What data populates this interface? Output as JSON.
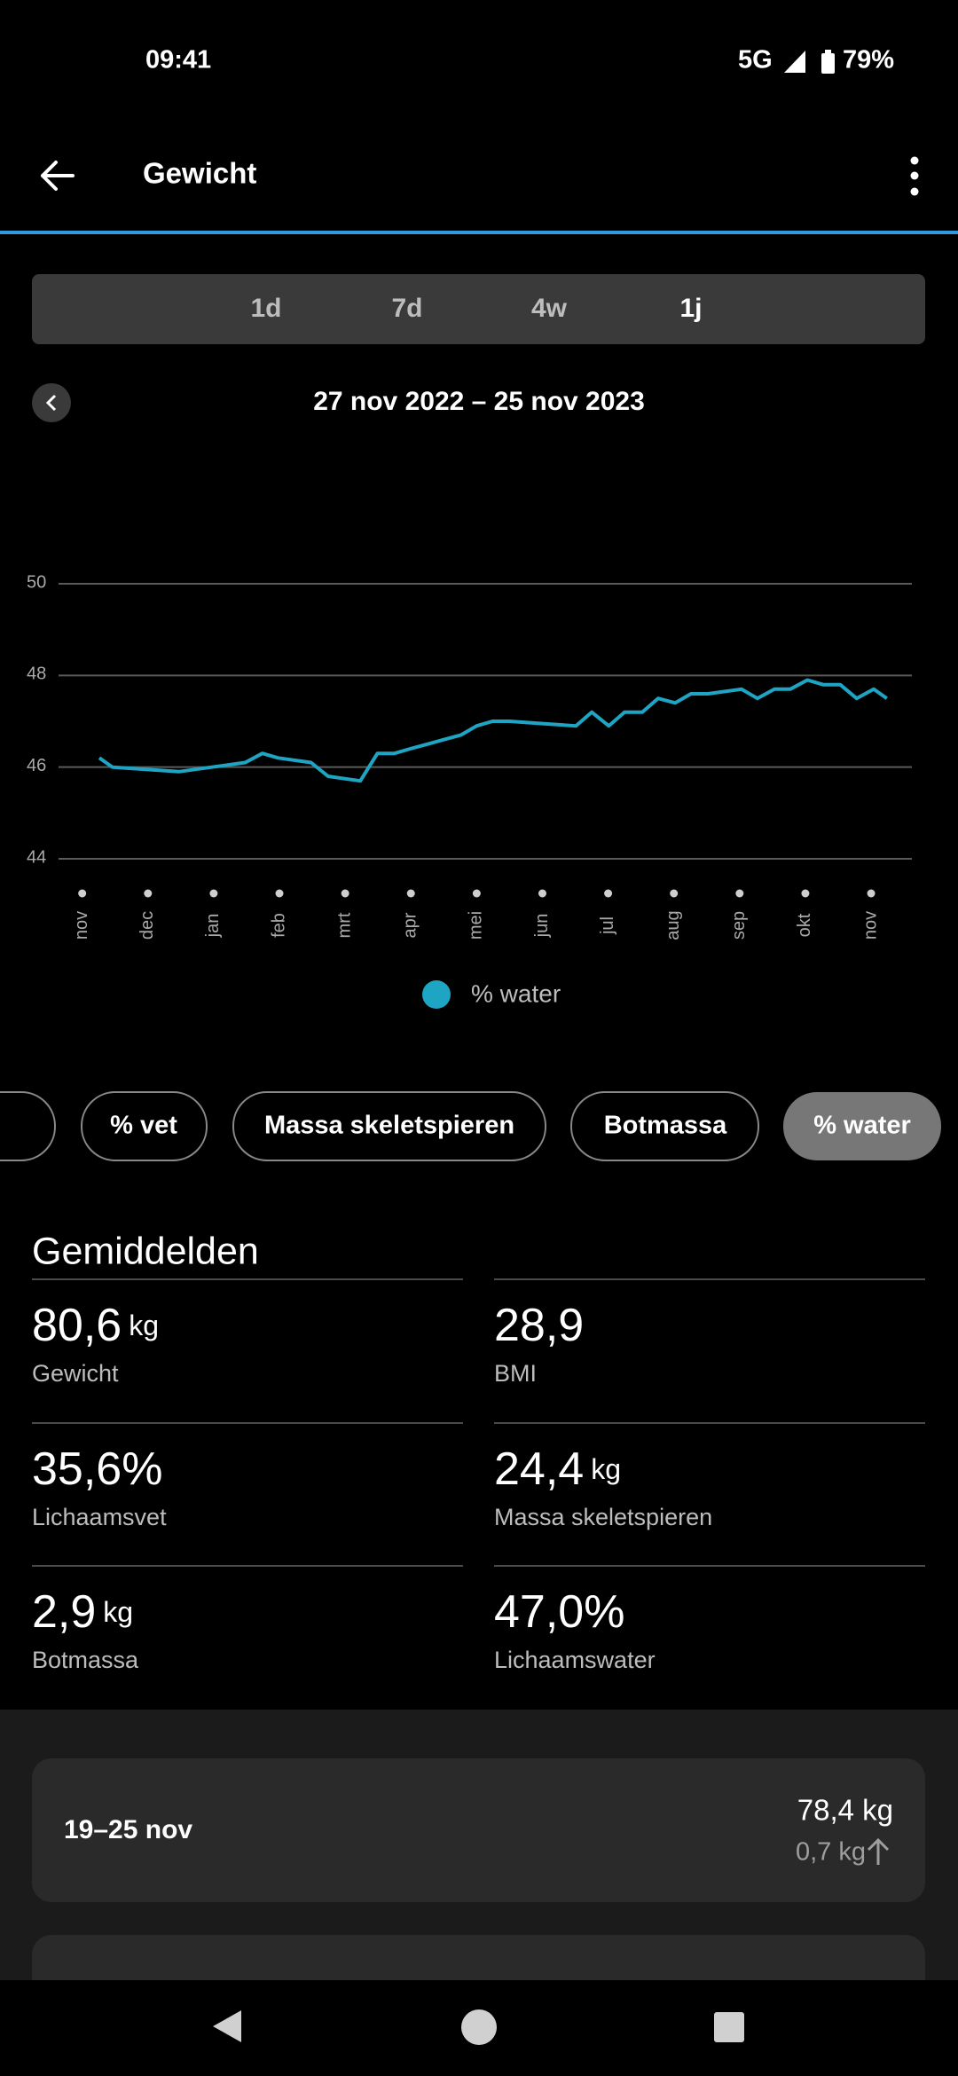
{
  "status_bar": {
    "time": "09:41",
    "network": "5G",
    "battery": "79%"
  },
  "header": {
    "title": "Gewicht"
  },
  "tabs": [
    "1d",
    "7d",
    "4w",
    "1j"
  ],
  "date_range": "27 nov 2022 – 25 nov 2023",
  "chart_data": {
    "type": "line",
    "xlim": [
      -0.36,
      12.62
    ],
    "xticks": [
      {
        "value": 0,
        "label": "nov"
      },
      {
        "value": 1,
        "label": "dec"
      },
      {
        "value": 2,
        "label": "jan"
      },
      {
        "value": 3,
        "label": "feb"
      },
      {
        "value": 4,
        "label": "mrt"
      },
      {
        "value": 5,
        "label": "apr"
      },
      {
        "value": 6,
        "label": "mei"
      },
      {
        "value": 7,
        "label": "jun"
      },
      {
        "value": 8,
        "label": "jul"
      },
      {
        "value": 9,
        "label": "aug"
      },
      {
        "value": 10,
        "label": "sep"
      },
      {
        "value": 11,
        "label": "okt"
      },
      {
        "value": 12,
        "label": "nov"
      }
    ],
    "ylim": [
      44,
      50
    ],
    "yticks": [
      44,
      46,
      48,
      50
    ],
    "grid": true,
    "x": [
      0.26,
      0.46,
      0.97,
      1.47,
      1.97,
      2.48,
      2.74,
      2.98,
      3.48,
      3.74,
      4.23,
      4.49,
      4.75,
      4.99,
      5.25,
      5.5,
      5.76,
      6.0,
      6.24,
      6.5,
      7.0,
      7.51,
      7.75,
      8.01,
      8.25,
      8.52,
      8.76,
      9.02,
      9.26,
      9.52,
      10.03,
      10.27,
      10.53,
      10.77,
      11.03,
      11.27,
      11.53,
      11.78,
      12.04,
      12.24
    ],
    "series": [
      {
        "name": "% water",
        "color": "#1fa5c4",
        "values": [
          46.2,
          46.0,
          45.95,
          45.9,
          46.0,
          46.1,
          46.3,
          46.2,
          46.1,
          45.8,
          45.7,
          46.3,
          46.3,
          46.4,
          46.5,
          46.6,
          46.7,
          46.9,
          47.0,
          47.0,
          46.95,
          46.9,
          47.2,
          46.9,
          47.2,
          47.2,
          47.5,
          47.4,
          47.6,
          47.6,
          47.7,
          47.5,
          47.7,
          47.7,
          47.9,
          47.8,
          47.8,
          47.5,
          47.7,
          47.5
        ]
      }
    ]
  },
  "chips": [
    "% vet",
    "Massa skeletspieren",
    "Botmassa",
    "% water"
  ],
  "averages": {
    "title": "Gemiddelden",
    "items": [
      {
        "value": "80,6",
        "unit": "kg",
        "label": "Gewicht"
      },
      {
        "value": "28,9",
        "label": "BMI"
      },
      {
        "value": "35,6%",
        "label": "Lichaamsvet"
      },
      {
        "value": "24,4",
        "unit": "kg",
        "label": "Massa skeletspieren"
      },
      {
        "value": "2,9",
        "unit": "kg",
        "label": "Botmassa"
      },
      {
        "value": "47,0%",
        "label": "Lichaamswater"
      }
    ]
  },
  "weeks": [
    {
      "period": "19–25 nov",
      "weight": "78,4 kg",
      "change": "0,7 kg"
    }
  ]
}
